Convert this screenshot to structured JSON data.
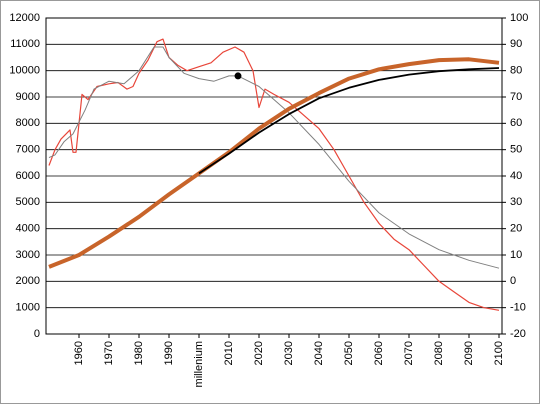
{
  "chart_data": {
    "type": "line",
    "xlim": [
      1949,
      2101
    ],
    "xticks": [
      1960,
      1970,
      1980,
      1990,
      {
        "value": 2000,
        "label": "millenium"
      },
      2010,
      2020,
      2030,
      2040,
      2050,
      2060,
      2070,
      2080,
      2090,
      2100
    ],
    "ylim": [
      0,
      12000
    ],
    "yticks": [
      0,
      1000,
      2000,
      3000,
      4000,
      5000,
      6000,
      7000,
      8000,
      9000,
      10000,
      11000,
      12000
    ],
    "y2lim": [
      -20,
      100
    ],
    "y2ticks": [
      -20,
      -10,
      0,
      10,
      20,
      30,
      40,
      50,
      60,
      70,
      80,
      90,
      100
    ],
    "grid": true,
    "series": [
      {
        "color": "#e8463a",
        "axis": "y2",
        "width": 1.2,
        "x": [
          1950,
          1952,
          1954,
          1957,
          1958,
          1959,
          1961,
          1963,
          1966,
          1970,
          1973,
          1976,
          1978,
          1980,
          1983,
          1986,
          1988,
          1990,
          1993,
          1996,
          2000,
          2004,
          2008,
          2012,
          2015,
          2018,
          2020,
          2022,
          2025,
          2030,
          2035,
          2040,
          2045,
          2050,
          2055,
          2060,
          2065,
          2070,
          2075,
          2080,
          2085,
          2090,
          2095,
          2100
        ],
        "values": [
          44,
          50,
          54,
          57.5,
          49,
          49,
          71,
          69,
          74,
          75,
          75.5,
          73,
          74,
          79,
          84,
          91,
          92,
          85,
          82,
          80,
          81.5,
          83,
          87,
          89,
          87,
          80,
          66,
          73,
          71,
          68,
          63,
          58,
          50,
          40,
          30,
          22,
          16,
          12,
          6,
          0,
          -4,
          -8,
          -10,
          -11
        ]
      },
      {
        "color": "#808080",
        "axis": "y2",
        "width": 1,
        "x": [
          1950,
          1952,
          1955,
          1958,
          1962,
          1965,
          1970,
          1975,
          1980,
          1985,
          1988,
          1990,
          1995,
          2000,
          2005,
          2010,
          2013,
          2020,
          2030,
          2040,
          2050,
          2060,
          2070,
          2080,
          2090,
          2100
        ],
        "values": [
          47,
          48,
          53,
          56,
          65,
          73,
          76,
          75,
          80,
          89,
          89,
          85,
          79,
          77,
          76,
          78,
          78,
          74,
          64,
          52,
          38,
          26,
          18,
          12,
          8,
          5
        ]
      },
      {
        "color": "#c8642a",
        "axis": "y",
        "width": 4,
        "x": [
          1950,
          1960,
          1970,
          1980,
          1990,
          2000,
          2010,
          2020,
          2030,
          2040,
          2050,
          2060,
          2070,
          2080,
          2090,
          2100
        ],
        "values": [
          2550,
          3000,
          3700,
          4450,
          5300,
          6100,
          6900,
          7800,
          8550,
          9150,
          9700,
          10050,
          10250,
          10400,
          10430,
          10300
        ]
      },
      {
        "color": "#000000",
        "axis": "y",
        "width": 1.8,
        "x": [
          2000,
          2010,
          2020,
          2030,
          2040,
          2050,
          2060,
          2070,
          2080,
          2090,
          2100
        ],
        "values": [
          6100,
          6850,
          7650,
          8350,
          8950,
          9350,
          9650,
          9850,
          9980,
          10050,
          10100
        ]
      },
      {
        "color": "#000000",
        "axis": "y2",
        "marker": "dot",
        "x": [
          2013
        ],
        "values": [
          78
        ]
      }
    ]
  }
}
